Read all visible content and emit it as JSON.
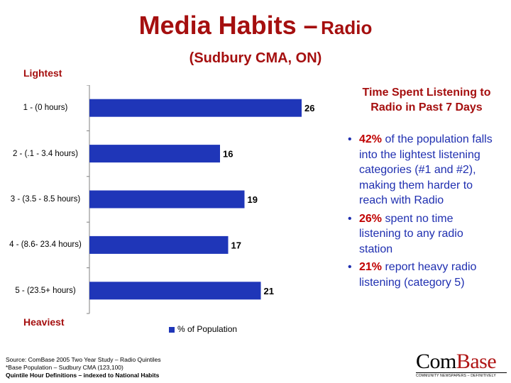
{
  "title": {
    "main": "Media Habits –",
    "suffix": "Radio",
    "subtitle": "(Sudbury CMA, ON)"
  },
  "labels": {
    "lightest": "Lightest",
    "heaviest": "Heaviest"
  },
  "chart_data": {
    "type": "bar",
    "orientation": "horizontal",
    "categories": [
      "1 - (0 hours)",
      "2 - (.1 - 3.4 hours)",
      "3 - (3.5 - 8.5 hours)",
      "4 - (8.6-  23.4 hours)",
      "5 - (23.5+ hours)"
    ],
    "series": [
      {
        "name": "% of Population",
        "values": [
          26,
          16,
          19,
          17,
          21
        ]
      }
    ],
    "xlim": [
      0,
      30
    ],
    "grid": false,
    "legend": "bottom",
    "color": "#1f36b8"
  },
  "side_panel": {
    "heading": "Time Spent Listening to Radio in Past 7 Days",
    "bullets": [
      {
        "bullet": "•",
        "highlight": "42%",
        "text": " of the population falls into the lightest listening categories (#1 and #2), making them harder to reach with Radio"
      },
      {
        "bullet": "•",
        "highlight": "26%",
        "text": " spent no time listening to any radio station"
      },
      {
        "bullet": "•",
        "highlight": "21%",
        "text": " report heavy radio listening (category 5)"
      }
    ]
  },
  "footer": {
    "source": "Source:  ComBase 2005 Two Year Study – Radio Quintiles",
    "base": "*Base Population  –  Sudbury CMA (123,100)",
    "definitions": "Quintile Hour Definitions – indexed to National Habits"
  },
  "logo": {
    "part1": "Com",
    "part2": "Base",
    "tagline": "COMMUNITY NEWSPAPERS – DEFINITIVELY"
  },
  "colors": {
    "title": "#a50f0f",
    "bar": "#1f36b8",
    "bullet_text": "#1f2fb0",
    "highlight": "#c00000"
  }
}
